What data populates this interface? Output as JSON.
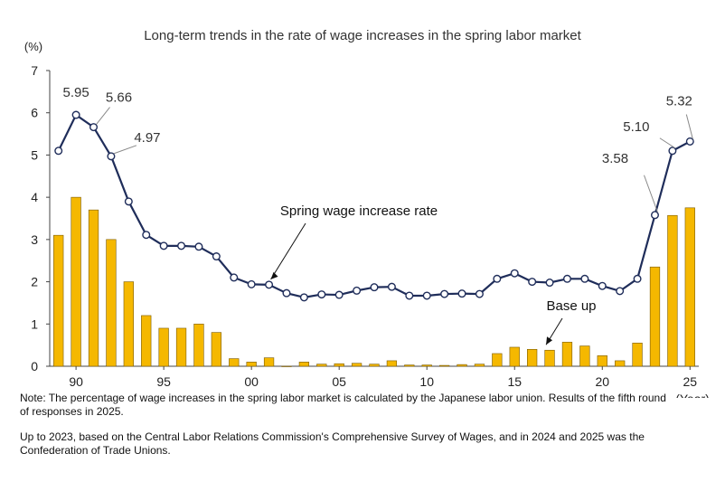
{
  "title": "Long-term trends in the rate of wage increases in the spring labor market",
  "notes": [
    "Note: The percentage of wage increases in the spring labor market is calculated by the Japanese labor union. Results of the fifth round of responses in 2025.",
    "Up to 2023, based on the Central Labor Relations Commission's Comprehensive Survey of Wages, and in 2024 and 2025 was the Confederation of Trade Unions."
  ],
  "colors": {
    "line": "#1f2d5a",
    "bar": "#f5b800",
    "bar_edge": "#7a5a00",
    "axis": "#444444"
  },
  "chart_data": {
    "type": "bar+line",
    "ylabel": "(%)",
    "xlabel": "(Year)",
    "ylim": [
      0,
      7
    ],
    "yticks": [
      0,
      1,
      2,
      3,
      4,
      5,
      6,
      7
    ],
    "xticks": [
      {
        "year": 1990,
        "label": "90"
      },
      {
        "year": 1995,
        "label": "95"
      },
      {
        "year": 2000,
        "label": "00"
      },
      {
        "year": 2005,
        "label": "05"
      },
      {
        "year": 2010,
        "label": "10"
      },
      {
        "year": 2015,
        "label": "15"
      },
      {
        "year": 2020,
        "label": "20"
      },
      {
        "year": 2025,
        "label": "25"
      }
    ],
    "years": [
      1989,
      1990,
      1991,
      1992,
      1993,
      1994,
      1995,
      1996,
      1997,
      1998,
      1999,
      2000,
      2001,
      2002,
      2003,
      2004,
      2005,
      2006,
      2007,
      2008,
      2009,
      2010,
      2011,
      2012,
      2013,
      2014,
      2015,
      2016,
      2017,
      2018,
      2019,
      2020,
      2021,
      2022,
      2023,
      2024,
      2025
    ],
    "series": [
      {
        "name": "Base up",
        "type": "bar",
        "values": [
          3.1,
          4.0,
          3.7,
          3.0,
          2.0,
          1.2,
          0.9,
          0.9,
          1.0,
          0.8,
          0.18,
          0.1,
          0.2,
          0.0,
          0.1,
          0.05,
          0.06,
          0.07,
          0.05,
          0.13,
          0.03,
          0.03,
          0.02,
          0.04,
          0.05,
          0.3,
          0.45,
          0.4,
          0.38,
          0.57,
          0.48,
          0.25,
          0.13,
          0.55,
          2.35,
          3.57,
          3.75
        ]
      },
      {
        "name": "Spring wage increase rate",
        "type": "line",
        "values": [
          null,
          5.95,
          5.66,
          4.97,
          3.9,
          3.11,
          2.85,
          2.85,
          2.83,
          2.6,
          2.1,
          1.94,
          1.93,
          1.73,
          1.63,
          1.7,
          1.69,
          1.79,
          1.87,
          1.88,
          1.67,
          1.67,
          1.71,
          1.72,
          1.71,
          2.07,
          2.2,
          2.0,
          1.98,
          2.07,
          2.07,
          1.9,
          1.78,
          2.07,
          3.58,
          5.1,
          5.32
        ],
        "first_value": 5.1
      }
    ],
    "data_labels": [
      {
        "year": 1990,
        "text": "5.95"
      },
      {
        "year": 1991,
        "text": "5.66"
      },
      {
        "year": 1992,
        "text": "4.97"
      },
      {
        "year": 2023,
        "text": "3.58"
      },
      {
        "year": 2024,
        "text": "5.10"
      },
      {
        "year": 2025,
        "text": "5.32"
      }
    ],
    "annotations": [
      {
        "text": "Spring wage increase rate",
        "target_year": 2001
      },
      {
        "text": "Base up",
        "target_year": 2017
      }
    ]
  }
}
